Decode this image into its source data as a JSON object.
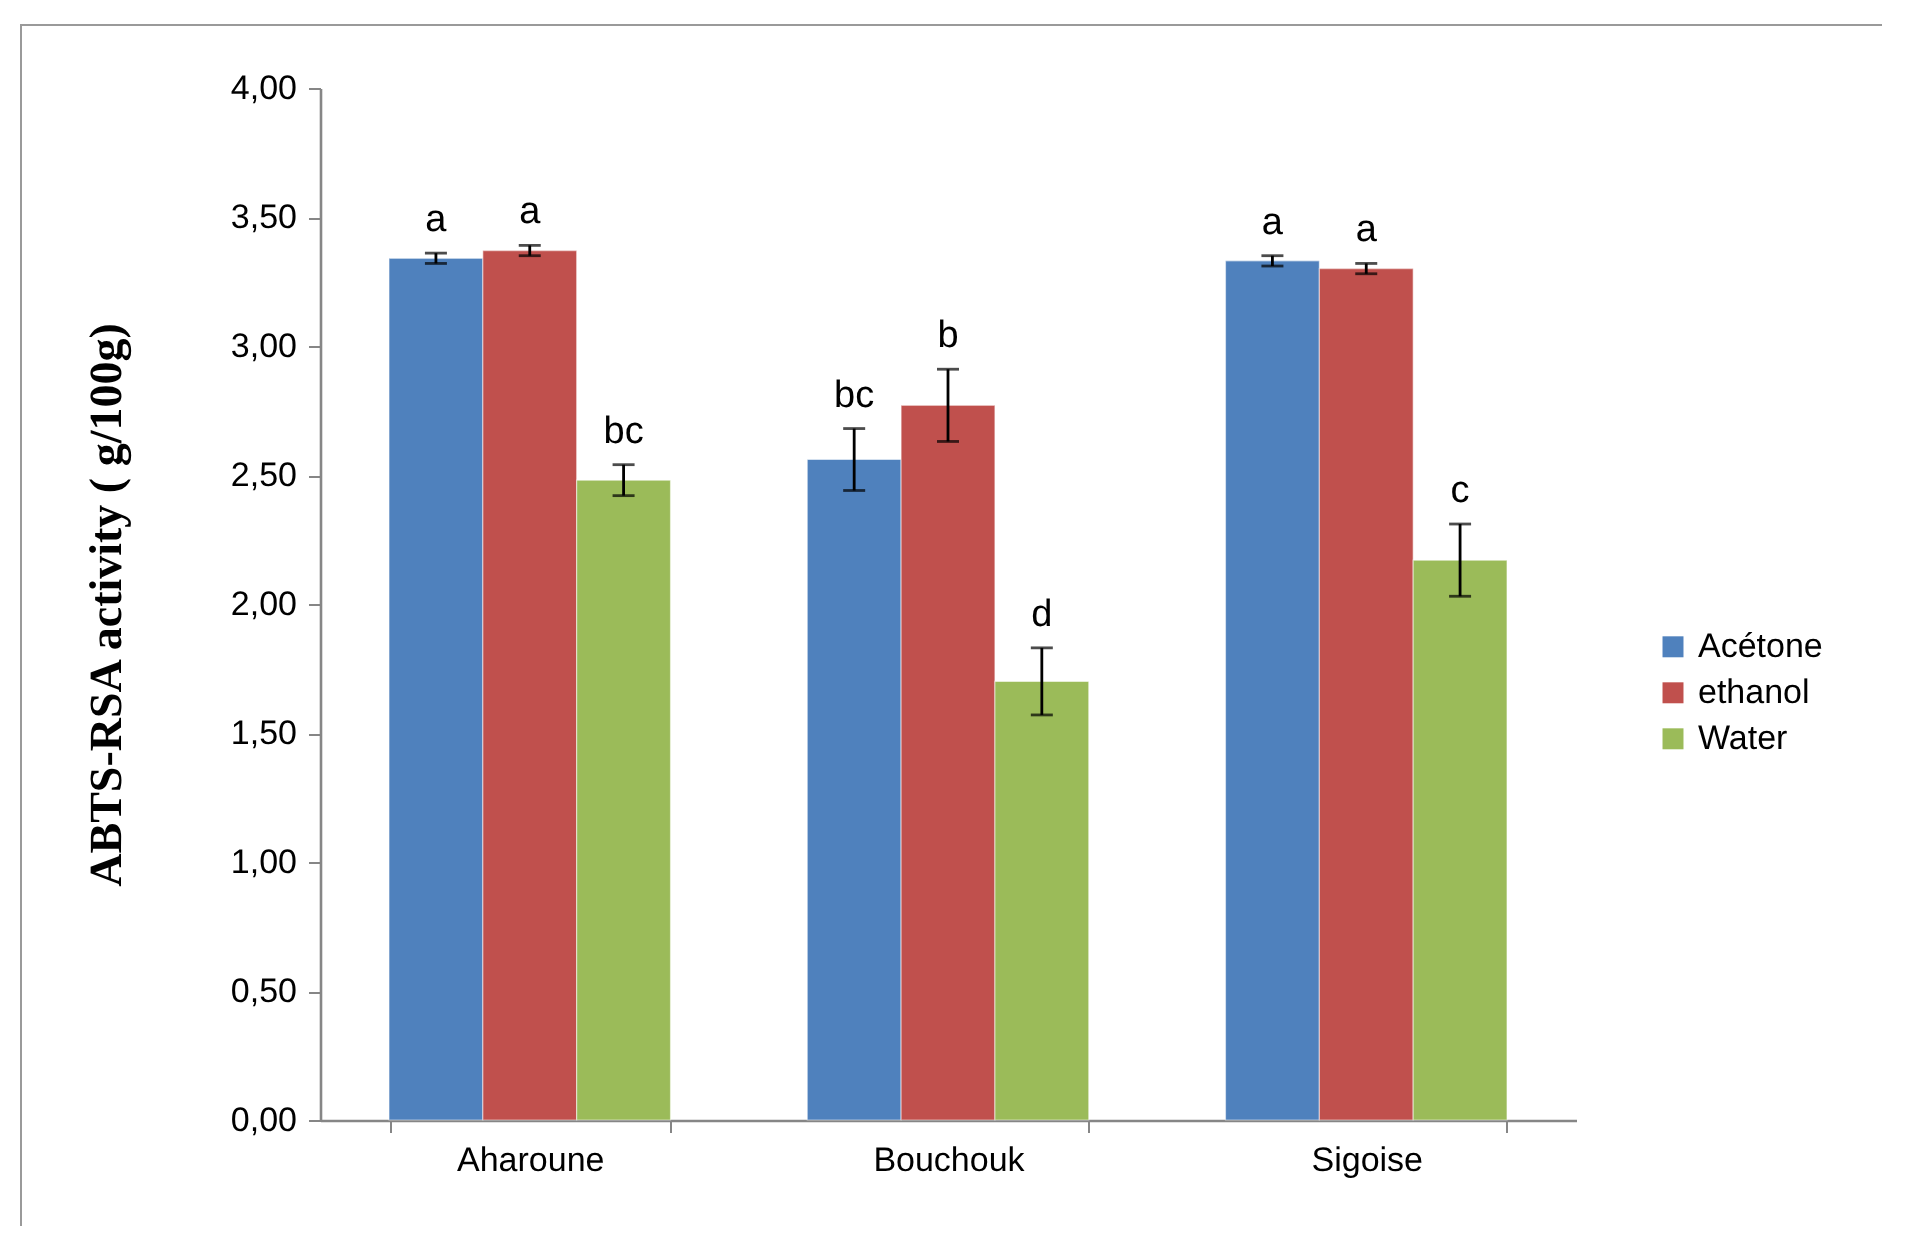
{
  "chart_data": {
    "type": "bar",
    "ylabel": "ABTS-RSA activity ( g/100g)",
    "categories": [
      "Aharoune",
      "Bouchouk",
      "Sigoise"
    ],
    "series": [
      {
        "name": "Acétone",
        "color": "#4f81bd",
        "values": [
          3.34,
          2.56,
          3.33
        ],
        "errors": [
          0.02,
          0.12,
          0.02
        ]
      },
      {
        "name": "ethanol",
        "color": "#c0504d",
        "values": [
          3.37,
          2.77,
          3.3
        ],
        "errors": [
          0.02,
          0.14,
          0.02
        ]
      },
      {
        "name": "Water",
        "color": "#9bbb59",
        "values": [
          2.48,
          1.7,
          2.17
        ],
        "errors": [
          0.06,
          0.13,
          0.14
        ]
      }
    ],
    "ylim": [
      0,
      4
    ],
    "yticks": [
      {
        "value": 0,
        "label": "0,00"
      },
      {
        "value": 0.5,
        "label": "0,50"
      },
      {
        "value": 1,
        "label": "1,00"
      },
      {
        "value": 1.5,
        "label": "1,50"
      },
      {
        "value": 2,
        "label": "2,00"
      },
      {
        "value": 2.5,
        "label": "2,50"
      },
      {
        "value": 3,
        "label": "3,00"
      },
      {
        "value": 3.5,
        "label": "3,50"
      },
      {
        "value": 4,
        "label": "4,00"
      }
    ],
    "annotations": [
      "a",
      "a",
      "bc",
      "bc",
      "b",
      "d",
      "a",
      "a",
      "c"
    ],
    "legend": "right"
  }
}
